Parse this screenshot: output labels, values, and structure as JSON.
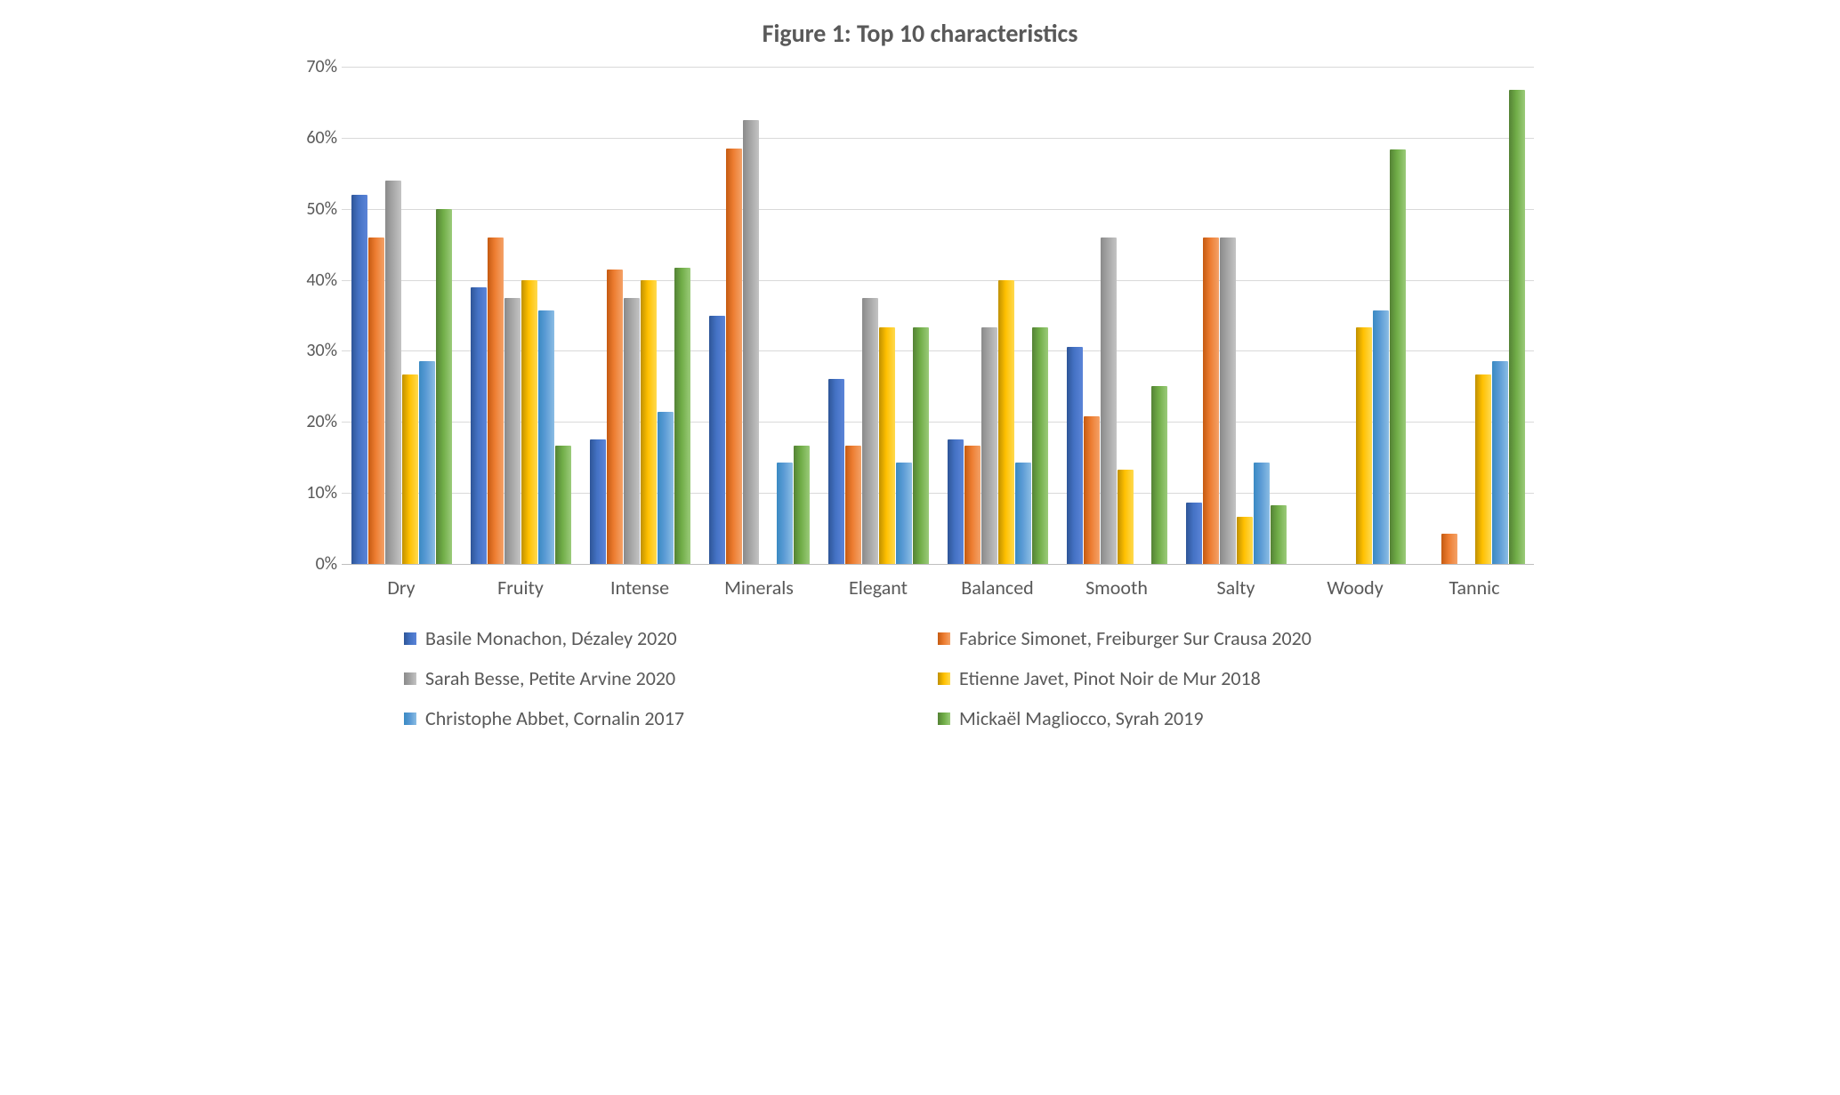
{
  "chart": {
    "type": "bar",
    "title": "Figure 1: Top 10 characteristics",
    "title_fontsize": 28,
    "title_color": "#595959",
    "background_color": "#ffffff",
    "grid_color": "#d9d9d9",
    "axis_color": "#bfbfbf",
    "label_color": "#595959",
    "label_fontsize": 22,
    "ylim": [
      0,
      70
    ],
    "ytick_step": 10,
    "y_ticks": [
      "0%",
      "10%",
      "20%",
      "30%",
      "40%",
      "50%",
      "60%",
      "70%"
    ],
    "categories": [
      "Dry",
      "Fruity",
      "Intense",
      "Minerals",
      "Elegant",
      "Balanced",
      "Smooth",
      "Salty",
      "Woody",
      "Tannic"
    ],
    "series": [
      {
        "name": "Basile Monachon, Dézaley 2020",
        "colors": [
          "#2e5597",
          "#4472c4",
          "#5b84d8"
        ],
        "values": [
          52,
          39,
          17.5,
          35,
          26,
          17.5,
          30.5,
          8.7,
          0,
          0
        ]
      },
      {
        "name": "Fabrice Simonet, Freiburger Sur Crausa 2020",
        "colors": [
          "#c55a11",
          "#ed7d31",
          "#f4a268"
        ],
        "values": [
          46,
          46,
          41.5,
          58.5,
          16.7,
          16.7,
          20.8,
          46,
          0,
          4.2
        ]
      },
      {
        "name": "Sarah Besse, Petite Arvine 2020",
        "colors": [
          "#8a8a8a",
          "#a5a5a5",
          "#c4c4c4"
        ],
        "values": [
          54,
          37.5,
          37.5,
          62.5,
          37.5,
          33.3,
          46,
          46,
          0,
          0
        ]
      },
      {
        "name": "Etienne Javet, Pinot Noir de Mur 2018",
        "colors": [
          "#bf9000",
          "#ffc000",
          "#ffda4f"
        ],
        "values": [
          26.7,
          40,
          40,
          0,
          33.3,
          40,
          13.3,
          6.7,
          33.3,
          26.7
        ]
      },
      {
        "name": "Christophe Abbet, Cornalin 2017",
        "colors": [
          "#3a8ac3",
          "#5b9bd5",
          "#8bbde4"
        ],
        "values": [
          28.6,
          35.7,
          21.4,
          14.3,
          14.3,
          14.3,
          0,
          14.3,
          35.7,
          28.6
        ]
      },
      {
        "name": "Mickaël Magliocco, Syrah 2019",
        "colors": [
          "#548235",
          "#70ad47",
          "#9bcb7a"
        ],
        "values": [
          50,
          16.7,
          41.7,
          16.7,
          33.3,
          33.3,
          25,
          8.3,
          58.3,
          66.7
        ]
      }
    ]
  }
}
